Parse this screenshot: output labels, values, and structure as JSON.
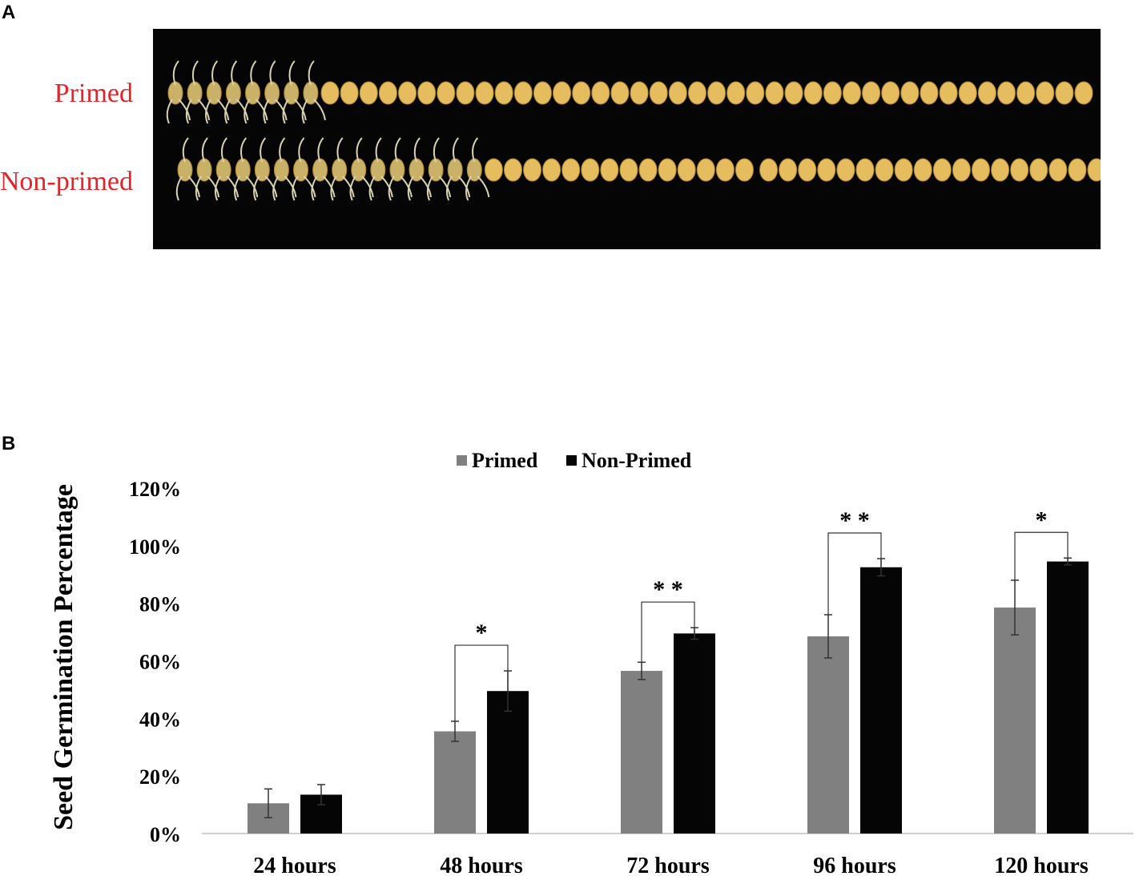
{
  "panel_a": {
    "letter": "A",
    "row_labels": [
      "Primed",
      "Non-primed"
    ],
    "label_color": "#e0252b"
  },
  "panel_b": {
    "letter": "B"
  },
  "chart_data": {
    "type": "bar",
    "title": "",
    "xlabel": "",
    "ylabel": "Seed Germination Percentage",
    "categories": [
      "24 hours",
      "48 hours",
      "72 hours",
      "96 hours",
      "120 hours"
    ],
    "ylim": [
      0,
      120
    ],
    "yticks": [
      "0%",
      "20%",
      "40%",
      "60%",
      "80%",
      "100%",
      "120%"
    ],
    "grid": false,
    "legend": "top-center",
    "series": [
      {
        "name": "Primed",
        "color": "#808080",
        "values": [
          10.5,
          35.5,
          56.5,
          68.5,
          78.5
        ],
        "errors": [
          5,
          3.5,
          3,
          7.5,
          9.5
        ]
      },
      {
        "name": "Non-Primed",
        "color": "#050505",
        "values": [
          13.5,
          49.5,
          69.5,
          92.5,
          94.5
        ],
        "errors": [
          3.5,
          7,
          2,
          3,
          1.2
        ]
      }
    ],
    "significance": [
      "",
      "*",
      "* *",
      "* *",
      "*"
    ]
  }
}
